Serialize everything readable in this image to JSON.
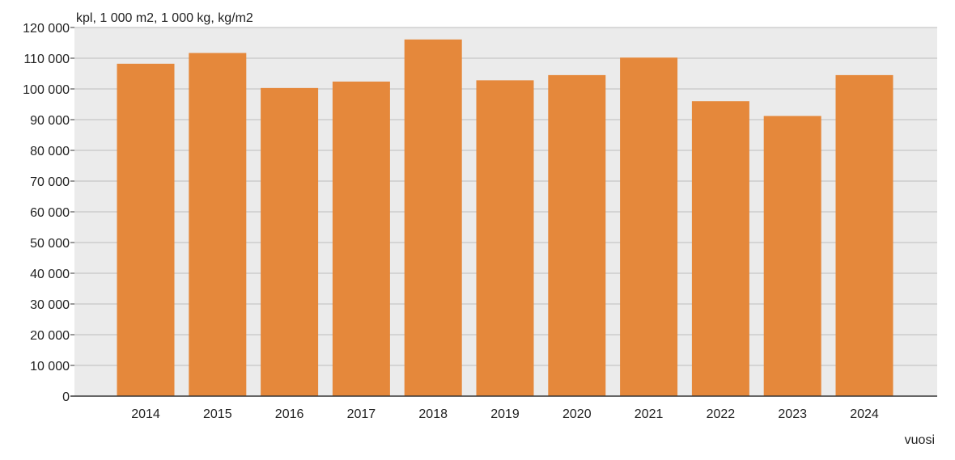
{
  "chart_data": {
    "type": "bar",
    "title": "",
    "ylabel": "kpl, 1 000 m2, 1 000 kg, kg/m2",
    "xlabel": "vuosi",
    "categories": [
      "2014",
      "2015",
      "2016",
      "2017",
      "2018",
      "2019",
      "2020",
      "2021",
      "2022",
      "2023",
      "2024"
    ],
    "values": [
      108200,
      111700,
      100300,
      102400,
      116100,
      102800,
      104500,
      110200,
      96000,
      91200,
      104500
    ],
    "ylim": [
      0,
      120000
    ],
    "yticks": [
      0,
      10000,
      20000,
      30000,
      40000,
      50000,
      60000,
      70000,
      80000,
      90000,
      100000,
      110000,
      120000
    ],
    "ytick_labels": [
      "0",
      "10 000",
      "20 000",
      "30 000",
      "40 000",
      "50 000",
      "60 000",
      "70 000",
      "80 000",
      "90 000",
      "100 000",
      "110 000",
      "120 000"
    ],
    "grid": true,
    "legend": "none",
    "colors": {
      "bar": "#E5883B",
      "plot_background": "#EBEBEB",
      "gridline": "#BDBDBD",
      "axis": "#333333"
    }
  }
}
